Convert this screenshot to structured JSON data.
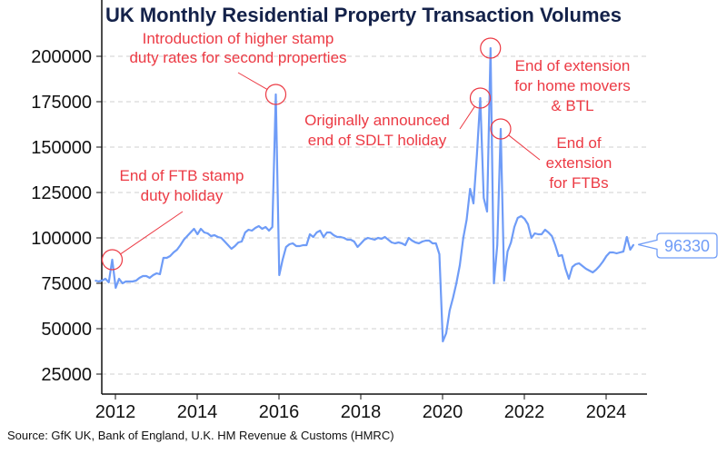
{
  "chart_data": {
    "type": "line",
    "title": "UK Monthly Residential Property Transaction Volumes",
    "source": "Source: GfK UK, Bank of England, U.K. HM Revenue & Customs (HMRC)",
    "xlabel": "",
    "ylabel": "",
    "ylim": [
      20000,
      215000
    ],
    "xlim": [
      "2011-09",
      "2025-01"
    ],
    "yticks": [
      "25000",
      "50000",
      "75000",
      "100000",
      "125000",
      "150000",
      "175000",
      "200000"
    ],
    "xticks": [
      "2012",
      "2014",
      "2016",
      "2018",
      "2020",
      "2022",
      "2024"
    ],
    "grid": "horizontal dashed",
    "legend": "none",
    "line_color": "#6f9cf7",
    "annotation_color": "#ec3a44",
    "end_label": "96330",
    "x": [
      "2011-10",
      "2011-11",
      "2011-12",
      "2012-01",
      "2012-02",
      "2012-03",
      "2012-04",
      "2012-05",
      "2012-06",
      "2012-07",
      "2012-08",
      "2012-09",
      "2012-10",
      "2012-11",
      "2012-12",
      "2013-01",
      "2013-02",
      "2013-03",
      "2013-04",
      "2013-05",
      "2013-06",
      "2013-07",
      "2013-08",
      "2013-09",
      "2013-10",
      "2013-11",
      "2013-12",
      "2014-01",
      "2014-02",
      "2014-03",
      "2014-04",
      "2014-05",
      "2014-06",
      "2014-07",
      "2014-08",
      "2014-09",
      "2014-10",
      "2014-11",
      "2014-12",
      "2015-01",
      "2015-02",
      "2015-03",
      "2015-04",
      "2015-05",
      "2015-06",
      "2015-07",
      "2015-08",
      "2015-09",
      "2015-10",
      "2015-11",
      "2015-12",
      "2016-01",
      "2016-02",
      "2016-03",
      "2016-04",
      "2016-05",
      "2016-06",
      "2016-07",
      "2016-08",
      "2016-09",
      "2016-10",
      "2016-11",
      "2016-12",
      "2017-01",
      "2017-02",
      "2017-03",
      "2017-04",
      "2017-05",
      "2017-06",
      "2017-07",
      "2017-08",
      "2017-09",
      "2017-10",
      "2017-11",
      "2017-12",
      "2018-01",
      "2018-02",
      "2018-03",
      "2018-04",
      "2018-05",
      "2018-06",
      "2018-07",
      "2018-08",
      "2018-09",
      "2018-10",
      "2018-11",
      "2018-12",
      "2019-01",
      "2019-02",
      "2019-03",
      "2019-04",
      "2019-05",
      "2019-06",
      "2019-07",
      "2019-08",
      "2019-09",
      "2019-10",
      "2019-11",
      "2019-12",
      "2020-01",
      "2020-02",
      "2020-03",
      "2020-04",
      "2020-05",
      "2020-06",
      "2020-07",
      "2020-08",
      "2020-09",
      "2020-10",
      "2020-11",
      "2020-12",
      "2021-01",
      "2021-02",
      "2021-03",
      "2021-04",
      "2021-05",
      "2021-06",
      "2021-07",
      "2021-08",
      "2021-09",
      "2021-10",
      "2021-11",
      "2021-12",
      "2022-01",
      "2022-02",
      "2022-03",
      "2022-04",
      "2022-05",
      "2022-06",
      "2022-07",
      "2022-08",
      "2022-09",
      "2022-10",
      "2022-11",
      "2022-12",
      "2023-01",
      "2023-02",
      "2023-03",
      "2023-04",
      "2023-05",
      "2023-06",
      "2023-07",
      "2023-08",
      "2023-09",
      "2023-10",
      "2023-11",
      "2023-12",
      "2024-01",
      "2024-02",
      "2024-03",
      "2024-04",
      "2024-05",
      "2024-06",
      "2024-07",
      "2024-08",
      "2024-09",
      "2024-10",
      "2024-11",
      "2024-12"
    ],
    "values": [
      76500,
      76000,
      76500,
      77500,
      75500,
      88000,
      72500,
      77500,
      75000,
      76000,
      76000,
      76000,
      76500,
      78000,
      79000,
      79000,
      78000,
      79500,
      80500,
      80000,
      89000,
      89000,
      90000,
      92000,
      93500,
      96000,
      99000,
      101000,
      103000,
      105000,
      102000,
      105000,
      103000,
      102500,
      101000,
      101500,
      100500,
      100000,
      98000,
      96000,
      94000,
      95500,
      97500,
      98000,
      103000,
      104500,
      104000,
      105500,
      106500,
      105000,
      106000,
      104000,
      106000,
      179000,
      79500,
      88000,
      95000,
      96500,
      97000,
      95500,
      95500,
      96000,
      96000,
      102000,
      100500,
      103000,
      104000,
      100500,
      103000,
      103000,
      101500,
      100500,
      100500,
      100000,
      99000,
      99000,
      98000,
      95000,
      97000,
      99000,
      100000,
      99500,
      99000,
      100000,
      99500,
      100500,
      99000,
      97500,
      97000,
      97500,
      97000,
      96000,
      100000,
      98500,
      97500,
      97000,
      98000,
      98500,
      98500,
      97000,
      97000,
      91000,
      43000,
      47500,
      60000,
      67000,
      75000,
      85000,
      100000,
      110000,
      127000,
      119000,
      145000,
      177000,
      122000,
      114500,
      204500,
      75000,
      96000,
      160000,
      76500,
      92500,
      97500,
      106000,
      111000,
      112000,
      110500,
      107500,
      100000,
      102500,
      102000,
      102000,
      104500,
      103000,
      101000,
      96000,
      90000,
      90500,
      83000,
      77500,
      84000,
      85500,
      86000,
      84500,
      83000,
      82000,
      81000,
      82500,
      84500,
      87000,
      90000,
      92000,
      92000,
      91500,
      92000,
      92500,
      100500,
      93500,
      96330
    ],
    "annotations": [
      {
        "point": "2012-03",
        "lines": [
          "End of FTB stamp",
          "duty holiday"
        ]
      },
      {
        "point": "2016-03",
        "lines": [
          "Introduction of higher stamp",
          "duty rates for second properties"
        ]
      },
      {
        "point": "2021-03",
        "lines": [
          "Originally announced",
          "end of SDLT holiday"
        ]
      },
      {
        "point": "2021-06",
        "lines": [
          "End of extension",
          "for home movers",
          "& BTL"
        ]
      },
      {
        "point": "2021-09",
        "lines": [
          "End of",
          "extension",
          "for FTBs"
        ]
      }
    ]
  }
}
